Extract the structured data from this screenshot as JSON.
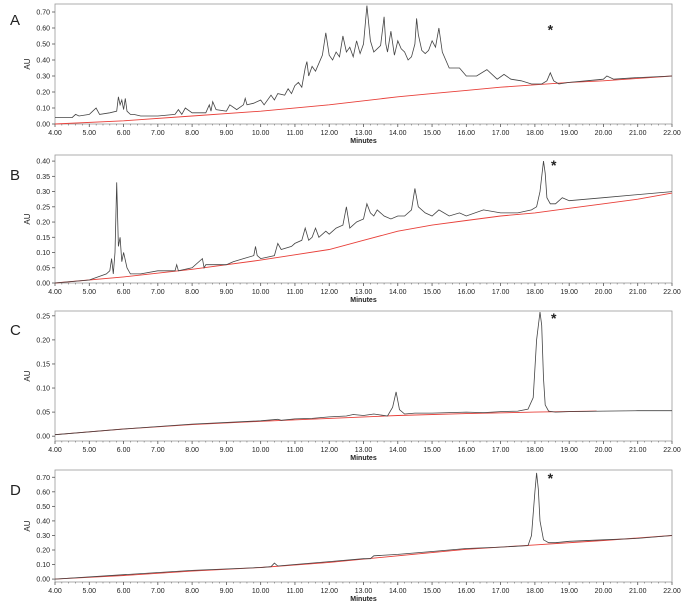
{
  "colors": {
    "trace": "#444444",
    "baseline": "#e8403a",
    "axis": "#555555"
  },
  "chart_data": [
    {
      "panel_label": "A",
      "type": "line",
      "xlabel": "Minutes",
      "ylabel": "AU",
      "xlim": [
        4.0,
        22.0
      ],
      "ylim": [
        0.0,
        0.75
      ],
      "xticks": [
        "4.00",
        "5.00",
        "6.00",
        "7.00",
        "8.00",
        "9.00",
        "10.00",
        "11.00",
        "12.00",
        "13.00",
        "14.00",
        "15.00",
        "16.00",
        "17.00",
        "18.00",
        "19.00",
        "20.00",
        "21.00",
        "22.00"
      ],
      "yticks": [
        "0.00",
        "0.10",
        "0.20",
        "0.30",
        "0.40",
        "0.50",
        "0.60",
        "0.70"
      ],
      "annotation": {
        "text": "*",
        "x": 18.45,
        "y": 0.56
      },
      "series": [
        {
          "x": [
            4.0,
            4.5,
            4.6,
            4.7,
            5.0,
            5.1,
            5.2,
            5.3,
            5.6,
            5.8,
            5.85,
            5.9,
            5.95,
            6.0,
            6.05,
            6.1,
            6.2,
            6.3,
            6.5,
            7.0,
            7.5,
            7.6,
            7.7,
            7.8,
            8.0,
            8.4,
            8.5,
            8.55,
            8.6,
            8.7,
            9.0,
            9.1,
            9.3,
            9.5,
            9.55,
            9.6,
            9.8,
            10.0,
            10.1,
            10.3,
            10.4,
            10.5,
            10.7,
            10.8,
            10.9,
            11.0,
            11.1,
            11.2,
            11.3,
            11.35,
            11.4,
            11.5,
            11.6,
            11.8,
            11.9,
            12.0,
            12.1,
            12.2,
            12.3,
            12.4,
            12.5,
            12.6,
            12.7,
            12.8,
            12.9,
            13.0,
            13.1,
            13.2,
            13.3,
            13.5,
            13.6,
            13.65,
            13.7,
            13.8,
            13.9,
            14.0,
            14.1,
            14.2,
            14.3,
            14.4,
            14.5,
            14.55,
            14.6,
            14.7,
            14.8,
            14.9,
            15.0,
            15.1,
            15.2,
            15.3,
            15.5,
            15.8,
            16.0,
            16.3,
            16.6,
            16.9,
            17.1,
            17.3,
            17.6,
            17.9,
            18.2,
            18.35,
            18.45,
            18.55,
            18.7,
            19.0,
            19.5,
            20.0,
            20.1,
            20.3,
            21.0,
            22.0
          ],
          "y": [
            0.04,
            0.04,
            0.06,
            0.05,
            0.06,
            0.08,
            0.1,
            0.06,
            0.07,
            0.08,
            0.17,
            0.12,
            0.15,
            0.09,
            0.16,
            0.08,
            0.06,
            0.06,
            0.05,
            0.05,
            0.06,
            0.09,
            0.06,
            0.1,
            0.07,
            0.07,
            0.12,
            0.08,
            0.14,
            0.09,
            0.08,
            0.12,
            0.09,
            0.12,
            0.16,
            0.12,
            0.13,
            0.15,
            0.12,
            0.18,
            0.15,
            0.19,
            0.18,
            0.22,
            0.19,
            0.24,
            0.26,
            0.23,
            0.35,
            0.39,
            0.3,
            0.36,
            0.33,
            0.43,
            0.57,
            0.43,
            0.4,
            0.45,
            0.42,
            0.55,
            0.45,
            0.48,
            0.42,
            0.52,
            0.44,
            0.5,
            0.74,
            0.52,
            0.45,
            0.49,
            0.67,
            0.5,
            0.45,
            0.58,
            0.43,
            0.52,
            0.47,
            0.45,
            0.4,
            0.42,
            0.5,
            0.66,
            0.56,
            0.46,
            0.44,
            0.46,
            0.52,
            0.48,
            0.6,
            0.45,
            0.35,
            0.35,
            0.3,
            0.3,
            0.34,
            0.28,
            0.31,
            0.28,
            0.27,
            0.25,
            0.25,
            0.27,
            0.32,
            0.27,
            0.25,
            0.26,
            0.27,
            0.28,
            0.3,
            0.28,
            0.29,
            0.3
          ]
        },
        {
          "x": [
            4.0,
            6.0,
            8.0,
            10.0,
            12.0,
            14.0,
            15.0,
            16.0,
            17.0,
            18.0,
            19.0,
            20.0,
            21.0,
            22.0
          ],
          "y": [
            0.0,
            0.02,
            0.05,
            0.08,
            0.12,
            0.17,
            0.19,
            0.21,
            0.23,
            0.245,
            0.26,
            0.27,
            0.285,
            0.3
          ]
        }
      ]
    },
    {
      "panel_label": "B",
      "type": "line",
      "xlabel": "Minutes",
      "ylabel": "AU",
      "xlim": [
        4.0,
        22.0
      ],
      "ylim": [
        0.0,
        0.42
      ],
      "xticks": [
        "4.00",
        "5.00",
        "6.00",
        "7.00",
        "8.00",
        "9.00",
        "10.00",
        "11.00",
        "12.00",
        "13.00",
        "14.00",
        "15.00",
        "16.00",
        "17.00",
        "18.00",
        "19.00",
        "20.00",
        "21.00",
        "22.00"
      ],
      "yticks": [
        "0.00",
        "0.05",
        "0.10",
        "0.15",
        "0.20",
        "0.25",
        "0.30",
        "0.35",
        "0.40"
      ],
      "annotation": {
        "text": "*",
        "x": 18.55,
        "y": 0.37
      },
      "series": [
        {
          "x": [
            4.0,
            5.0,
            5.5,
            5.6,
            5.65,
            5.7,
            5.75,
            5.8,
            5.85,
            5.9,
            5.95,
            6.0,
            6.1,
            6.2,
            6.5,
            7.0,
            7.5,
            7.55,
            7.6,
            8.0,
            8.3,
            8.35,
            8.4,
            9.0,
            9.2,
            9.5,
            9.8,
            9.85,
            9.9,
            10.0,
            10.4,
            10.5,
            10.6,
            10.9,
            11.0,
            11.2,
            11.3,
            11.4,
            11.5,
            11.6,
            11.7,
            11.9,
            12.0,
            12.2,
            12.4,
            12.5,
            12.6,
            12.8,
            13.0,
            13.1,
            13.2,
            13.3,
            13.4,
            13.5,
            13.6,
            13.8,
            14.0,
            14.2,
            14.4,
            14.5,
            14.6,
            14.8,
            15.0,
            15.2,
            15.5,
            15.8,
            16.0,
            16.5,
            17.0,
            17.5,
            17.9,
            18.05,
            18.15,
            18.25,
            18.3,
            18.35,
            18.45,
            18.6,
            18.8,
            19.0,
            20.0,
            21.0,
            22.0
          ],
          "y": [
            0.0,
            0.01,
            0.03,
            0.04,
            0.08,
            0.03,
            0.1,
            0.33,
            0.12,
            0.15,
            0.07,
            0.1,
            0.05,
            0.03,
            0.03,
            0.04,
            0.04,
            0.06,
            0.04,
            0.05,
            0.08,
            0.05,
            0.06,
            0.06,
            0.07,
            0.08,
            0.09,
            0.12,
            0.09,
            0.08,
            0.09,
            0.13,
            0.11,
            0.12,
            0.13,
            0.14,
            0.18,
            0.14,
            0.15,
            0.18,
            0.15,
            0.17,
            0.16,
            0.18,
            0.19,
            0.25,
            0.18,
            0.2,
            0.21,
            0.26,
            0.23,
            0.22,
            0.24,
            0.23,
            0.22,
            0.21,
            0.22,
            0.22,
            0.24,
            0.31,
            0.25,
            0.23,
            0.22,
            0.24,
            0.22,
            0.23,
            0.22,
            0.24,
            0.23,
            0.23,
            0.24,
            0.25,
            0.3,
            0.4,
            0.36,
            0.28,
            0.26,
            0.26,
            0.28,
            0.27,
            0.28,
            0.29,
            0.3
          ]
        },
        {
          "x": [
            4.0,
            6.0,
            8.0,
            10.0,
            12.0,
            13.0,
            14.0,
            15.0,
            16.0,
            17.0,
            18.0,
            19.0,
            20.0,
            21.0,
            22.0
          ],
          "y": [
            0.0,
            0.02,
            0.045,
            0.075,
            0.11,
            0.14,
            0.17,
            0.19,
            0.205,
            0.22,
            0.23,
            0.245,
            0.26,
            0.275,
            0.295
          ]
        }
      ]
    },
    {
      "panel_label": "C",
      "type": "line",
      "xlabel": "Minutes",
      "ylabel": "AU",
      "xlim": [
        4.0,
        22.0
      ],
      "ylim": [
        -0.01,
        0.26
      ],
      "xticks": [
        "4.00",
        "5.00",
        "6.00",
        "7.00",
        "8.00",
        "9.00",
        "10.00",
        "11.00",
        "12.00",
        "13.00",
        "14.00",
        "15.00",
        "16.00",
        "17.00",
        "18.00",
        "19.00",
        "20.00",
        "21.00",
        "22.00"
      ],
      "yticks": [
        "0.00",
        "0.05",
        "0.10",
        "0.15",
        "0.20",
        "0.25"
      ],
      "annotation": {
        "text": "*",
        "x": 18.55,
        "y": 0.235
      },
      "series": [
        {
          "x": [
            4.0,
            6.0,
            8.0,
            10.0,
            10.5,
            10.6,
            11.0,
            11.5,
            12.0,
            12.5,
            12.7,
            13.0,
            13.3,
            13.5,
            13.7,
            13.85,
            13.95,
            14.05,
            14.2,
            14.5,
            15.0,
            15.5,
            16.0,
            16.5,
            17.0,
            17.5,
            17.8,
            17.95,
            18.05,
            18.15,
            18.2,
            18.25,
            18.3,
            18.4,
            18.6,
            19.0,
            20.0,
            21.0,
            22.0
          ],
          "y": [
            0.003,
            0.015,
            0.025,
            0.032,
            0.035,
            0.033,
            0.036,
            0.037,
            0.04,
            0.042,
            0.045,
            0.043,
            0.046,
            0.044,
            0.042,
            0.06,
            0.092,
            0.055,
            0.046,
            0.048,
            0.048,
            0.049,
            0.05,
            0.049,
            0.051,
            0.052,
            0.056,
            0.08,
            0.2,
            0.258,
            0.23,
            0.12,
            0.065,
            0.052,
            0.05,
            0.051,
            0.052,
            0.053,
            0.053
          ]
        },
        {
          "x": [
            4.0,
            6.0,
            8.0,
            10.0,
            12.0,
            14.0,
            16.0,
            18.0,
            19.8
          ],
          "y": [
            0.003,
            0.015,
            0.024,
            0.031,
            0.037,
            0.043,
            0.047,
            0.05,
            0.052
          ]
        }
      ]
    },
    {
      "panel_label": "D",
      "type": "line",
      "xlabel": "Minutes",
      "ylabel": "AU",
      "xlim": [
        4.0,
        22.0
      ],
      "ylim": [
        -0.02,
        0.75
      ],
      "xticks": [
        "4.00",
        "5.00",
        "6.00",
        "7.00",
        "8.00",
        "9.00",
        "10.00",
        "11.00",
        "12.00",
        "13.00",
        "14.00",
        "15.00",
        "16.00",
        "17.00",
        "18.00",
        "19.00",
        "20.00",
        "21.00",
        "22.00"
      ],
      "yticks": [
        "0.00",
        "0.10",
        "0.20",
        "0.30",
        "0.40",
        "0.50",
        "0.60",
        "0.70"
      ],
      "annotation": {
        "text": "*",
        "x": 18.45,
        "y": 0.66
      },
      "series": [
        {
          "x": [
            4.0,
            6.0,
            8.0,
            10.0,
            10.3,
            10.4,
            10.5,
            11.0,
            12.0,
            13.0,
            13.2,
            13.3,
            14.0,
            15.0,
            16.0,
            17.0,
            17.8,
            17.9,
            18.0,
            18.05,
            18.1,
            18.15,
            18.25,
            18.4,
            18.6,
            19.0,
            20.0,
            21.0,
            22.0
          ],
          "y": [
            0.0,
            0.03,
            0.06,
            0.08,
            0.085,
            0.11,
            0.09,
            0.1,
            0.12,
            0.14,
            0.14,
            0.16,
            0.17,
            0.19,
            0.21,
            0.22,
            0.23,
            0.3,
            0.6,
            0.73,
            0.62,
            0.4,
            0.27,
            0.25,
            0.25,
            0.26,
            0.27,
            0.28,
            0.3
          ]
        },
        {
          "x": [
            4.0,
            6.0,
            8.0,
            10.0,
            12.0,
            14.0,
            16.0,
            18.0,
            20.0,
            22.0
          ],
          "y": [
            0.0,
            0.025,
            0.055,
            0.08,
            0.115,
            0.16,
            0.205,
            0.235,
            0.265,
            0.3
          ]
        }
      ]
    }
  ]
}
